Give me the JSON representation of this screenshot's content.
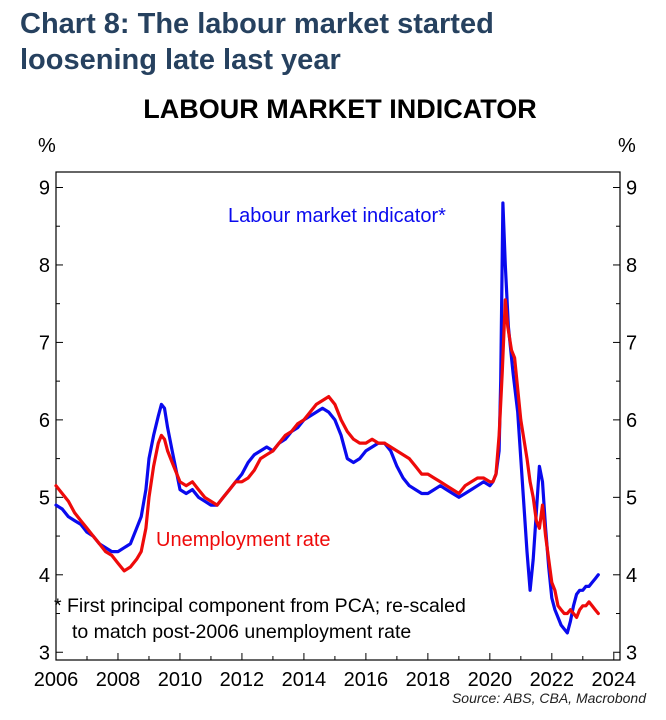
{
  "page": {
    "heading_line1": "Chart 8: The labour market started",
    "heading_line2": "loosening late last year",
    "source": "Source: ABS, CBA, Macrobond"
  },
  "colors": {
    "heading": "#26415f",
    "lmi": "#0a0aee",
    "unemployment": "#ee0a0a",
    "axis": "#000000"
  },
  "chart_data": {
    "type": "line",
    "title": "LABOUR MARKET INDICATOR",
    "ylabel_left": "%",
    "ylabel_right": "%",
    "xlim": [
      2006,
      2024.2
    ],
    "ylim": [
      2.9,
      9.2
    ],
    "xticks": [
      2006,
      2008,
      2010,
      2012,
      2014,
      2016,
      2018,
      2020,
      2022,
      2024
    ],
    "yticks": [
      3,
      4,
      5,
      6,
      7,
      8,
      9
    ],
    "grid": false,
    "annotations": {
      "lmi_label": "Labour market indicator*",
      "ur_label": "Unemployment rate",
      "footnote_line1": "*  First principal component from PCA; re-scaled",
      "footnote_line2": "to match post-2006 unemployment rate"
    },
    "series": [
      {
        "name": "Labour market indicator*",
        "x": [
          2006.0,
          2006.2,
          2006.4,
          2006.6,
          2006.8,
          2007.0,
          2007.2,
          2007.4,
          2007.6,
          2007.8,
          2008.0,
          2008.2,
          2008.4,
          2008.6,
          2008.75,
          2008.9,
          2009.0,
          2009.15,
          2009.3,
          2009.4,
          2009.5,
          2009.6,
          2009.75,
          2009.9,
          2010.0,
          2010.2,
          2010.4,
          2010.6,
          2010.8,
          2011.0,
          2011.2,
          2011.4,
          2011.6,
          2011.8,
          2012.0,
          2012.2,
          2012.4,
          2012.6,
          2012.8,
          2013.0,
          2013.2,
          2013.4,
          2013.6,
          2013.8,
          2014.0,
          2014.2,
          2014.4,
          2014.6,
          2014.8,
          2015.0,
          2015.2,
          2015.4,
          2015.6,
          2015.8,
          2016.0,
          2016.2,
          2016.4,
          2016.6,
          2016.8,
          2017.0,
          2017.2,
          2017.4,
          2017.6,
          2017.8,
          2018.0,
          2018.2,
          2018.4,
          2018.6,
          2018.8,
          2019.0,
          2019.2,
          2019.4,
          2019.6,
          2019.8,
          2020.0,
          2020.1,
          2020.2,
          2020.3,
          2020.35,
          2020.42,
          2020.5,
          2020.6,
          2020.75,
          2020.9,
          2021.0,
          2021.1,
          2021.2,
          2021.3,
          2021.4,
          2021.5,
          2021.6,
          2021.7,
          2021.8,
          2021.9,
          2022.0,
          2022.1,
          2022.2,
          2022.3,
          2022.4,
          2022.5,
          2022.6,
          2022.7,
          2022.8,
          2022.9,
          2023.0,
          2023.1,
          2023.2,
          2023.3,
          2023.4,
          2023.5
        ],
        "values": [
          4.9,
          4.85,
          4.75,
          4.7,
          4.65,
          4.55,
          4.5,
          4.4,
          4.35,
          4.3,
          4.3,
          4.35,
          4.4,
          4.6,
          4.75,
          5.1,
          5.5,
          5.8,
          6.05,
          6.2,
          6.15,
          5.9,
          5.6,
          5.3,
          5.1,
          5.05,
          5.1,
          5.0,
          4.95,
          4.9,
          4.9,
          5.0,
          5.1,
          5.2,
          5.3,
          5.45,
          5.55,
          5.6,
          5.65,
          5.6,
          5.7,
          5.75,
          5.85,
          5.9,
          6.0,
          6.05,
          6.1,
          6.15,
          6.1,
          6.0,
          5.8,
          5.5,
          5.45,
          5.5,
          5.6,
          5.65,
          5.7,
          5.7,
          5.6,
          5.4,
          5.25,
          5.15,
          5.1,
          5.05,
          5.05,
          5.1,
          5.15,
          5.1,
          5.05,
          5.0,
          5.05,
          5.1,
          5.15,
          5.2,
          5.15,
          5.2,
          5.3,
          5.6,
          6.5,
          8.8,
          8.0,
          7.2,
          6.6,
          6.1,
          5.5,
          4.9,
          4.3,
          3.8,
          4.2,
          4.8,
          5.4,
          5.2,
          4.6,
          4.1,
          3.7,
          3.55,
          3.45,
          3.35,
          3.3,
          3.25,
          3.4,
          3.6,
          3.75,
          3.8,
          3.8,
          3.85,
          3.85,
          3.9,
          3.95,
          4.0
        ]
      },
      {
        "name": "Unemployment rate",
        "x": [
          2006.0,
          2006.2,
          2006.4,
          2006.6,
          2006.8,
          2007.0,
          2007.2,
          2007.4,
          2007.6,
          2007.8,
          2008.0,
          2008.2,
          2008.4,
          2008.6,
          2008.75,
          2008.9,
          2009.0,
          2009.15,
          2009.3,
          2009.4,
          2009.5,
          2009.6,
          2009.75,
          2009.9,
          2010.0,
          2010.2,
          2010.4,
          2010.6,
          2010.8,
          2011.0,
          2011.2,
          2011.4,
          2011.6,
          2011.8,
          2012.0,
          2012.2,
          2012.4,
          2012.6,
          2012.8,
          2013.0,
          2013.2,
          2013.4,
          2013.6,
          2013.8,
          2014.0,
          2014.2,
          2014.4,
          2014.6,
          2014.8,
          2015.0,
          2015.2,
          2015.4,
          2015.6,
          2015.8,
          2016.0,
          2016.2,
          2016.4,
          2016.6,
          2016.8,
          2017.0,
          2017.2,
          2017.4,
          2017.6,
          2017.8,
          2018.0,
          2018.2,
          2018.4,
          2018.6,
          2018.8,
          2019.0,
          2019.2,
          2019.4,
          2019.6,
          2019.8,
          2020.0,
          2020.1,
          2020.2,
          2020.3,
          2020.4,
          2020.5,
          2020.58,
          2020.7,
          2020.8,
          2020.9,
          2021.0,
          2021.1,
          2021.2,
          2021.3,
          2021.4,
          2021.5,
          2021.6,
          2021.7,
          2021.8,
          2021.9,
          2022.0,
          2022.1,
          2022.2,
          2022.3,
          2022.4,
          2022.5,
          2022.6,
          2022.7,
          2022.8,
          2022.9,
          2023.0,
          2023.1,
          2023.2,
          2023.3,
          2023.4,
          2023.5
        ],
        "values": [
          5.15,
          5.05,
          4.95,
          4.8,
          4.7,
          4.6,
          4.5,
          4.4,
          4.3,
          4.25,
          4.15,
          4.05,
          4.1,
          4.2,
          4.3,
          4.6,
          5.0,
          5.4,
          5.7,
          5.8,
          5.75,
          5.6,
          5.45,
          5.3,
          5.2,
          5.15,
          5.2,
          5.1,
          5.0,
          4.95,
          4.9,
          5.0,
          5.1,
          5.2,
          5.2,
          5.25,
          5.35,
          5.5,
          5.55,
          5.6,
          5.7,
          5.8,
          5.85,
          5.95,
          6.0,
          6.1,
          6.2,
          6.25,
          6.3,
          6.2,
          6.0,
          5.85,
          5.75,
          5.7,
          5.7,
          5.75,
          5.7,
          5.7,
          5.65,
          5.6,
          5.55,
          5.5,
          5.4,
          5.3,
          5.3,
          5.25,
          5.2,
          5.15,
          5.1,
          5.05,
          5.15,
          5.2,
          5.25,
          5.25,
          5.2,
          5.2,
          5.3,
          5.8,
          6.6,
          7.55,
          7.2,
          6.9,
          6.8,
          6.4,
          6.0,
          5.75,
          5.5,
          5.2,
          5.0,
          4.7,
          4.6,
          4.9,
          4.5,
          4.2,
          3.9,
          3.8,
          3.6,
          3.55,
          3.5,
          3.5,
          3.55,
          3.5,
          3.45,
          3.55,
          3.6,
          3.6,
          3.65,
          3.6,
          3.55,
          3.5
        ]
      }
    ]
  }
}
